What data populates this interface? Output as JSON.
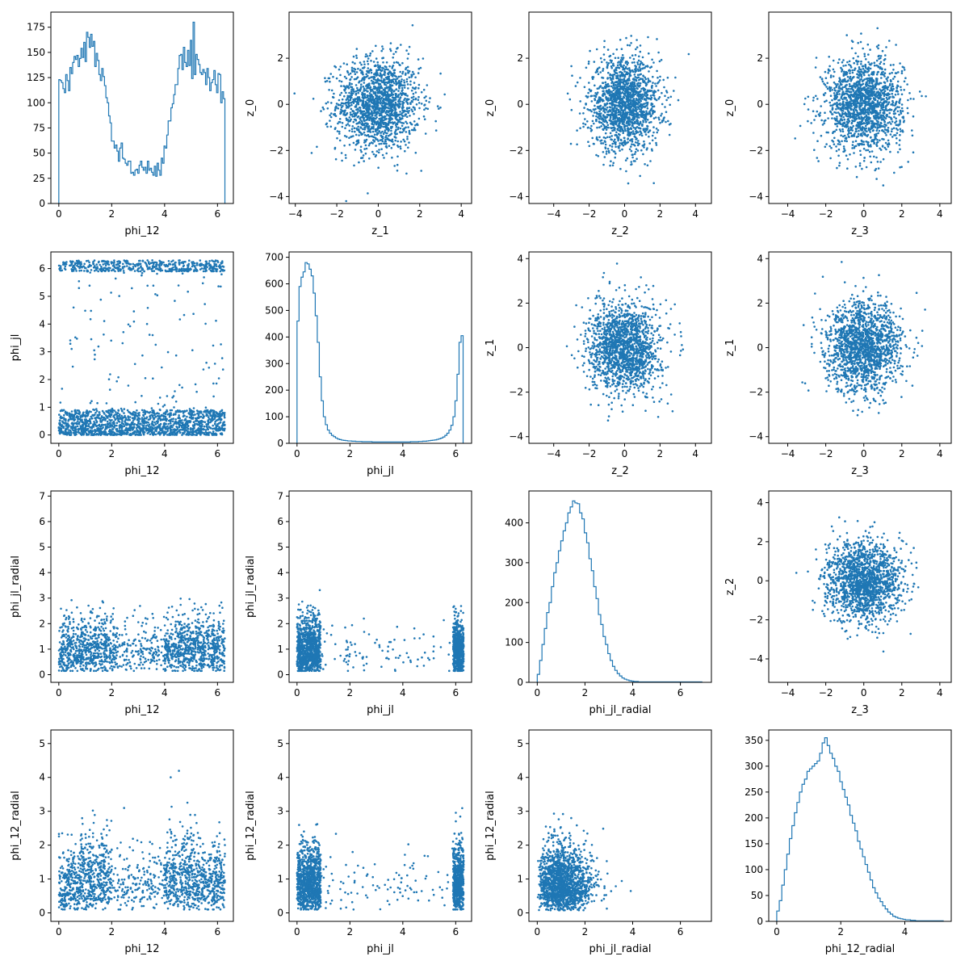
{
  "colors": {
    "series": "#1f77b4",
    "axes": "#000000",
    "background": "#ffffff"
  },
  "chart_data": [
    {
      "panel": "0-0",
      "type": "histogram",
      "xlabel": "phi_12",
      "ylabel": "",
      "xlim": [
        -0.3,
        6.6
      ],
      "ylim": [
        0,
        190
      ],
      "xticks": [
        0,
        2,
        4,
        6
      ],
      "yticks": [
        0,
        25,
        50,
        75,
        100,
        125,
        150,
        175
      ],
      "bin_range": [
        0,
        6.28
      ],
      "values": [
        123,
        122,
        120,
        114,
        110,
        128,
        122,
        112,
        135,
        129,
        140,
        146,
        143,
        147,
        136,
        144,
        154,
        145,
        160,
        141,
        170,
        165,
        155,
        168,
        156,
        161,
        136,
        149,
        142,
        128,
        122,
        134,
        126,
        117,
        105,
        100,
        87,
        80,
        62,
        62,
        55,
        58,
        52,
        42,
        55,
        60,
        45,
        44,
        40,
        38,
        42,
        42,
        30,
        31,
        28,
        33,
        34,
        30,
        38,
        42,
        36,
        33,
        36,
        30,
        42,
        33,
        35,
        31,
        28,
        37,
        27,
        40,
        33,
        28,
        45,
        40,
        57,
        55,
        68,
        82,
        82,
        95,
        99,
        108,
        118,
        118,
        134,
        147,
        148,
        133,
        155,
        140,
        136,
        152,
        137,
        162,
        124,
        180,
        128,
        148,
        143,
        138,
        130,
        128,
        133,
        130,
        118,
        134,
        125,
        112,
        120,
        123,
        132,
        118,
        110,
        129,
        128,
        100,
        111,
        104
      ]
    },
    {
      "panel": "0-1",
      "type": "scatter",
      "xlabel": "z_1",
      "ylabel": "z_0",
      "xlim": [
        -4.3,
        4.5
      ],
      "ylim": [
        -4.3,
        4.0
      ],
      "xticks": [
        -4,
        -2,
        0,
        2,
        4
      ],
      "yticks": [
        -4,
        -2,
        0,
        2
      ],
      "distribution": {
        "kind": "gauss2d",
        "cx": 0,
        "cy": 0,
        "sx": 1,
        "sy": 1,
        "n": 1600
      }
    },
    {
      "panel": "0-2",
      "type": "scatter",
      "xlabel": "z_2",
      "ylabel": "z_0",
      "xlim": [
        -5.4,
        4.9
      ],
      "ylim": [
        -4.3,
        4.0
      ],
      "xticks": [
        -4,
        -2,
        0,
        2,
        4
      ],
      "yticks": [
        -4,
        -2,
        0,
        2
      ],
      "distribution": {
        "kind": "gauss2d",
        "cx": 0,
        "cy": 0,
        "sx": 1,
        "sy": 1,
        "n": 1600
      }
    },
    {
      "panel": "0-3",
      "type": "scatter",
      "xlabel": "z_3",
      "ylabel": "z_0",
      "xlim": [
        -5.0,
        4.6
      ],
      "ylim": [
        -4.3,
        4.0
      ],
      "xticks": [
        -4,
        -2,
        0,
        2,
        4
      ],
      "yticks": [
        -4,
        -2,
        0,
        2
      ],
      "distribution": {
        "kind": "gauss2d",
        "cx": 0,
        "cy": 0,
        "sx": 1,
        "sy": 1,
        "n": 1600
      }
    },
    {
      "panel": "1-0",
      "type": "scatter",
      "xlabel": "phi_12",
      "ylabel": "phi_jl",
      "xlim": [
        -0.3,
        6.6
      ],
      "ylim": [
        -0.3,
        6.6
      ],
      "xticks": [
        0,
        2,
        4,
        6
      ],
      "yticks": [
        0,
        1,
        2,
        3,
        4,
        5,
        6
      ],
      "distribution": {
        "kind": "bands",
        "x_range": [
          0,
          6.28
        ],
        "bands": [
          [
            0,
            0.9,
            1500
          ],
          [
            5.9,
            6.3,
            500
          ],
          [
            0.9,
            5.9,
            120
          ]
        ]
      }
    },
    {
      "panel": "1-1",
      "type": "histogram",
      "xlabel": "phi_jl",
      "ylabel": "",
      "xlim": [
        -0.3,
        6.6
      ],
      "ylim": [
        0,
        720
      ],
      "xticks": [
        0,
        2,
        4,
        6
      ],
      "yticks": [
        0,
        100,
        200,
        300,
        400,
        500,
        600,
        700
      ],
      "bin_range": [
        0,
        6.28
      ],
      "values": [
        460,
        590,
        625,
        645,
        680,
        675,
        655,
        630,
        565,
        480,
        380,
        250,
        160,
        100,
        70,
        50,
        38,
        30,
        25,
        20,
        16,
        14,
        12,
        11,
        10,
        9,
        9,
        8,
        8,
        7,
        7,
        7,
        6,
        6,
        6,
        6,
        6,
        5,
        5,
        5,
        5,
        5,
        5,
        5,
        5,
        5,
        5,
        5,
        5,
        5,
        5,
        5,
        5,
        5,
        5,
        5,
        6,
        6,
        6,
        6,
        7,
        7,
        8,
        8,
        9,
        10,
        11,
        12,
        13,
        15,
        17,
        20,
        24,
        30,
        38,
        50,
        68,
        100,
        160,
        260,
        380,
        405
      ]
    },
    {
      "panel": "1-2",
      "type": "scatter",
      "xlabel": "z_2",
      "ylabel": "z_1",
      "xlim": [
        -5.4,
        4.9
      ],
      "ylim": [
        -4.3,
        4.3
      ],
      "xticks": [
        -4,
        -2,
        0,
        2,
        4
      ],
      "yticks": [
        -4,
        -2,
        0,
        2,
        4
      ],
      "distribution": {
        "kind": "gauss2d",
        "cx": 0,
        "cy": 0,
        "sx": 1,
        "sy": 1,
        "n": 1600
      }
    },
    {
      "panel": "1-3",
      "type": "scatter",
      "xlabel": "z_3",
      "ylabel": "z_1",
      "xlim": [
        -5.0,
        4.6
      ],
      "ylim": [
        -4.3,
        4.3
      ],
      "xticks": [
        -4,
        -2,
        0,
        2,
        4
      ],
      "yticks": [
        -4,
        -2,
        0,
        2,
        4
      ],
      "distribution": {
        "kind": "gauss2d",
        "cx": 0,
        "cy": 0,
        "sx": 1,
        "sy": 1,
        "n": 1600
      }
    },
    {
      "panel": "2-0",
      "type": "scatter",
      "xlabel": "phi_12",
      "ylabel": "phi_jl_radial",
      "xlim": [
        -0.3,
        6.6
      ],
      "ylim": [
        -0.3,
        7.2
      ],
      "xticks": [
        0,
        2,
        4,
        6
      ],
      "yticks": [
        0,
        1,
        2,
        3,
        4,
        5,
        6,
        7
      ],
      "distribution": {
        "kind": "chi_uniform",
        "x_range": [
          0,
          6.28
        ],
        "scale": 0.85,
        "min": 0.15,
        "n": 1600
      }
    },
    {
      "panel": "2-1",
      "type": "scatter",
      "xlabel": "phi_jl",
      "ylabel": "phi_jl_radial",
      "xlim": [
        -0.3,
        6.6
      ],
      "ylim": [
        -0.3,
        7.2
      ],
      "xticks": [
        0,
        2,
        4,
        6
      ],
      "yticks": [
        0,
        1,
        2,
        3,
        4,
        5,
        6,
        7
      ],
      "distribution": {
        "kind": "edges",
        "left": [
          0,
          0.9
        ],
        "right": [
          5.9,
          6.3
        ],
        "scale": 0.85,
        "min": 0.15,
        "n": 1600
      }
    },
    {
      "panel": "2-2",
      "type": "histogram",
      "xlabel": "phi_jl_radial",
      "ylabel": "",
      "xlim": [
        -0.35,
        7.3
      ],
      "ylim": [
        0,
        480
      ],
      "xticks": [
        0,
        2,
        4,
        6
      ],
      "yticks": [
        0,
        100,
        200,
        300,
        400
      ],
      "bin_range": [
        0,
        6.9
      ],
      "values": [
        20,
        55,
        95,
        135,
        175,
        200,
        240,
        275,
        300,
        330,
        355,
        380,
        400,
        425,
        440,
        455,
        450,
        448,
        425,
        410,
        375,
        350,
        310,
        280,
        240,
        210,
        170,
        145,
        115,
        95,
        72,
        55,
        40,
        30,
        22,
        16,
        11,
        8,
        6,
        4,
        3,
        2,
        2,
        1,
        1,
        1,
        1,
        1,
        1,
        1,
        1,
        1,
        1,
        1,
        1,
        1,
        1,
        1,
        1,
        1,
        1,
        1,
        1,
        1,
        1,
        1,
        1,
        1,
        1,
        1
      ]
    },
    {
      "panel": "2-3",
      "type": "scatter",
      "xlabel": "z_3",
      "ylabel": "z_2",
      "xlim": [
        -5.0,
        4.6
      ],
      "ylim": [
        -5.2,
        4.6
      ],
      "xticks": [
        -4,
        -2,
        0,
        2,
        4
      ],
      "yticks": [
        -4,
        -2,
        0,
        2,
        4
      ],
      "distribution": {
        "kind": "gauss2d",
        "cx": 0,
        "cy": 0,
        "sx": 1,
        "sy": 1,
        "n": 1600
      }
    },
    {
      "panel": "3-0",
      "type": "scatter",
      "xlabel": "phi_12",
      "ylabel": "phi_12_radial",
      "xlim": [
        -0.3,
        6.6
      ],
      "ylim": [
        -0.25,
        5.4
      ],
      "xticks": [
        0,
        2,
        4,
        6
      ],
      "yticks": [
        0,
        1,
        2,
        3,
        4,
        5
      ],
      "distribution": {
        "kind": "chi_modulated",
        "x_range": [
          0,
          6.28
        ],
        "scale": 0.75,
        "min": 0.1,
        "n": 1600
      }
    },
    {
      "panel": "3-1",
      "type": "scatter",
      "xlabel": "phi_jl",
      "ylabel": "phi_12_radial",
      "xlim": [
        -0.3,
        6.6
      ],
      "ylim": [
        -0.25,
        5.4
      ],
      "xticks": [
        0,
        2,
        4,
        6
      ],
      "yticks": [
        0,
        1,
        2,
        3,
        4,
        5
      ],
      "distribution": {
        "kind": "edges",
        "left": [
          0,
          0.9
        ],
        "right": [
          5.9,
          6.3
        ],
        "scale": 0.75,
        "min": 0.1,
        "n": 1600
      }
    },
    {
      "panel": "3-2",
      "type": "scatter",
      "xlabel": "phi_jl_radial",
      "ylabel": "phi_12_radial",
      "xlim": [
        -0.35,
        7.3
      ],
      "ylim": [
        -0.25,
        5.4
      ],
      "xticks": [
        0,
        2,
        4,
        6
      ],
      "yticks": [
        0,
        1,
        2,
        3,
        4,
        5
      ],
      "distribution": {
        "kind": "chi2d",
        "sx": 0.85,
        "sy": 0.75,
        "n": 1600
      }
    },
    {
      "panel": "3-3",
      "type": "histogram",
      "xlabel": "phi_12_radial",
      "ylabel": "",
      "xlim": [
        -0.25,
        5.45
      ],
      "ylim": [
        0,
        370
      ],
      "xticks": [
        0,
        2,
        4
      ],
      "yticks": [
        0,
        50,
        100,
        150,
        200,
        250,
        300,
        350
      ],
      "bin_range": [
        0,
        5.2
      ],
      "values": [
        20,
        40,
        70,
        100,
        130,
        160,
        185,
        210,
        230,
        250,
        265,
        275,
        290,
        295,
        300,
        305,
        310,
        325,
        345,
        355,
        340,
        325,
        315,
        300,
        290,
        270,
        255,
        240,
        225,
        205,
        190,
        175,
        155,
        140,
        125,
        110,
        95,
        80,
        65,
        55,
        45,
        38,
        30,
        24,
        18,
        14,
        10,
        8,
        6,
        5,
        4,
        3,
        3,
        2,
        2,
        1,
        1,
        1,
        1,
        1,
        1,
        1,
        1,
        1,
        1,
        1
      ]
    }
  ]
}
